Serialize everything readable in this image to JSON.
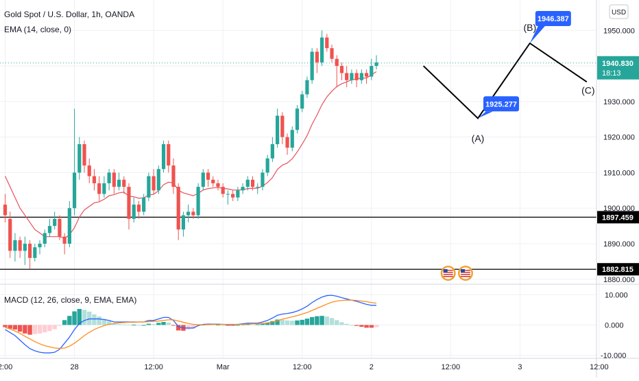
{
  "header": {
    "title": "Gold Spot / U.S. Dollar, 1h, OANDA",
    "ema_label": "EMA (14, close, 0)",
    "macd_label": "MACD (12, 26, close, 9, EMA, EMA)",
    "currency": "USD"
  },
  "colors": {
    "up": "#26a69a",
    "down": "#ef5350",
    "ema": "#e5505c",
    "macd": "#2962ff",
    "signal": "#ff8c1a",
    "callout": "#2962ff",
    "grid": "#eef0f3"
  },
  "chart_data": {
    "type": "candlestick",
    "price_axis": {
      "range": [
        1879,
        1957
      ],
      "ticks": [
        "1950.000",
        "1940.000",
        "1930.000",
        "1920.000",
        "1910.000",
        "1900.000",
        "1890.000",
        "1880.000"
      ],
      "tick_values": [
        1950,
        1940,
        1930,
        1920,
        1910,
        1900,
        1890,
        1880
      ]
    },
    "macd_axis": {
      "range": [
        -11,
        13
      ],
      "ticks": [
        "10.000",
        "0.000",
        "-10.000"
      ],
      "tick_values": [
        10,
        0,
        -10
      ]
    },
    "time_axis": {
      "labels": [
        "2:00",
        "28",
        "12:00",
        "Mar",
        "12:00",
        "2",
        "12:00",
        "3",
        "12:00"
      ],
      "label_bars": [
        0,
        14,
        30,
        44,
        60,
        74,
        90,
        104,
        120
      ]
    },
    "current_price": {
      "value": 1940.83,
      "label": "1940.830",
      "countdown": "18:13"
    },
    "horizontal_levels": [
      {
        "value": 1897.459,
        "label": "1897.459"
      },
      {
        "value": 1882.815,
        "label": "1882.815"
      }
    ],
    "projection": {
      "points": [
        {
          "bar": 84.5,
          "price": 1940.0
        },
        {
          "bar": 95.5,
          "price": 1925.277,
          "label": "(A)",
          "callout": "1925.277"
        },
        {
          "bar": 106.0,
          "price": 1946.387,
          "label": "(B)",
          "callout": "1946.387"
        },
        {
          "bar": 117.5,
          "price": 1935.5,
          "label": "(C)"
        }
      ]
    },
    "candles": [
      [
        1901,
        1898,
        1904,
        1896
      ],
      [
        1897,
        1888,
        1899,
        1886
      ],
      [
        1888,
        1891,
        1893,
        1885
      ],
      [
        1891,
        1888,
        1892,
        1886
      ],
      [
        1888,
        1890,
        1892,
        1884
      ],
      [
        1890,
        1886,
        1891,
        1883
      ],
      [
        1886,
        1889,
        1890,
        1885
      ],
      [
        1889,
        1890,
        1891,
        1887
      ],
      [
        1890,
        1893,
        1894,
        1889
      ],
      [
        1893,
        1895,
        1897,
        1892
      ],
      [
        1895,
        1897,
        1899,
        1894
      ],
      [
        1897,
        1892,
        1898,
        1891
      ],
      [
        1892,
        1890,
        1893,
        1887
      ],
      [
        1890,
        1900,
        1902,
        1889
      ],
      [
        1900,
        1910,
        1928,
        1898
      ],
      [
        1910,
        1918,
        1920,
        1908
      ],
      [
        1918,
        1912,
        1919,
        1910
      ],
      [
        1912,
        1909,
        1914,
        1907
      ],
      [
        1909,
        1907,
        1911,
        1905
      ],
      [
        1907,
        1904,
        1909,
        1902
      ],
      [
        1904,
        1907,
        1909,
        1903
      ],
      [
        1907,
        1910,
        1911,
        1905
      ],
      [
        1910,
        1906,
        1911,
        1904
      ],
      [
        1906,
        1908,
        1910,
        1905
      ],
      [
        1908,
        1906,
        1909,
        1904
      ],
      [
        1906,
        1897,
        1907,
        1894
      ],
      [
        1897,
        1901,
        1903,
        1896
      ],
      [
        1901,
        1899,
        1902,
        1897
      ],
      [
        1899,
        1903,
        1904,
        1898
      ],
      [
        1903,
        1909,
        1910,
        1902
      ],
      [
        1909,
        1905,
        1911,
        1904
      ],
      [
        1905,
        1911,
        1912,
        1904
      ],
      [
        1911,
        1918,
        1919,
        1910
      ],
      [
        1918,
        1912,
        1919,
        1910
      ],
      [
        1912,
        1906,
        1914,
        1904
      ],
      [
        1906,
        1894,
        1907,
        1891
      ],
      [
        1894,
        1898,
        1899,
        1892
      ],
      [
        1898,
        1899,
        1901,
        1896
      ],
      [
        1899,
        1898,
        1900,
        1897
      ],
      [
        1898,
        1906,
        1907,
        1897
      ],
      [
        1906,
        1910,
        1911,
        1905
      ],
      [
        1910,
        1908,
        1911,
        1906
      ],
      [
        1908,
        1907,
        1909,
        1906
      ],
      [
        1907,
        1906,
        1908,
        1905
      ],
      [
        1906,
        1904,
        1907,
        1903
      ],
      [
        1904,
        1904,
        1905,
        1901
      ],
      [
        1904,
        1903,
        1905,
        1902
      ],
      [
        1903,
        1905,
        1906,
        1902
      ],
      [
        1905,
        1906,
        1907,
        1904
      ],
      [
        1906,
        1908,
        1909,
        1905
      ],
      [
        1908,
        1906,
        1909,
        1905
      ],
      [
        1906,
        1906,
        1907,
        1904
      ],
      [
        1906,
        1910,
        1911,
        1905
      ],
      [
        1910,
        1914,
        1915,
        1909
      ],
      [
        1914,
        1918,
        1920,
        1913
      ],
      [
        1918,
        1926,
        1928,
        1917
      ],
      [
        1926,
        1920,
        1927,
        1918
      ],
      [
        1920,
        1917,
        1921,
        1915
      ],
      [
        1917,
        1922,
        1923,
        1916
      ],
      [
        1922,
        1928,
        1929,
        1921
      ],
      [
        1928,
        1932,
        1933,
        1927
      ],
      [
        1932,
        1936,
        1937,
        1931
      ],
      [
        1936,
        1944,
        1945,
        1935
      ],
      [
        1944,
        1941,
        1945,
        1938
      ],
      [
        1941,
        1948,
        1950,
        1940
      ],
      [
        1948,
        1945,
        1949,
        1944
      ],
      [
        1945,
        1942,
        1946,
        1941
      ],
      [
        1942,
        1940,
        1943,
        1934
      ],
      [
        1940,
        1938,
        1941,
        1936
      ],
      [
        1938,
        1936,
        1940,
        1934
      ],
      [
        1936,
        1938,
        1939,
        1935
      ],
      [
        1938,
        1936,
        1939,
        1934
      ],
      [
        1936,
        1938,
        1939,
        1935
      ],
      [
        1938,
        1937,
        1939,
        1935
      ],
      [
        1937,
        1940,
        1942,
        1936
      ],
      [
        1940,
        1941,
        1943,
        1939
      ]
    ],
    "ema": [
      1909,
      1906,
      1903,
      1900,
      1898,
      1896,
      1894,
      1893,
      1892,
      1892,
      1892,
      1892,
      1891.5,
      1892.5,
      1894.5,
      1897.5,
      1899.5,
      1900.5,
      1901.5,
      1901.8,
      1902.5,
      1903.5,
      1903.8,
      1904.3,
      1904.5,
      1903.4,
      1903.2,
      1902.8,
      1902.9,
      1903.7,
      1903.9,
      1904.9,
      1906.6,
      1907.3,
      1907.1,
      1905.0,
      1904.3,
      1903.9,
      1903.5,
      1904.2,
      1905.1,
      1905.5,
      1905.7,
      1905.8,
      1905.6,
      1905.4,
      1905.1,
      1905.1,
      1905.2,
      1905.5,
      1905.6,
      1905.6,
      1906.2,
      1907.2,
      1908.6,
      1910.9,
      1912.1,
      1912.7,
      1913.9,
      1915.8,
      1918.0,
      1920.4,
      1923.6,
      1926.2,
      1929.1,
      1931.3,
      1932.9,
      1934.2,
      1935.0,
      1935.5,
      1936.1,
      1936.3,
      1936.6,
      1936.6,
      1937.5,
      1938.4
    ],
    "macd": [
      -1.5,
      -2.5,
      -3.5,
      -5,
      -6.5,
      -7.8,
      -8.5,
      -9,
      -9.2,
      -9.2,
      -9,
      -8,
      -6,
      -4,
      -1.5,
      0.5,
      1.5,
      2,
      2,
      2,
      1.8,
      1.5,
      1,
      1,
      1,
      1,
      1,
      1,
      1,
      1.5,
      1.5,
      2,
      2.5,
      2.5,
      1.5,
      -0.5,
      -1,
      -1,
      -1,
      -0.2,
      0.2,
      0.3,
      0.3,
      0.3,
      0.2,
      0.1,
      0.1,
      0.2,
      0.4,
      0.6,
      0.6,
      0.6,
      1,
      1.5,
      2.3,
      3.2,
      3.6,
      3.8,
      4.1,
      4.6,
      5.3,
      6.2,
      7.4,
      8.4,
      9.2,
      9.7,
      9.8,
      9.5,
      9,
      8.6,
      8.2,
      7.8,
      7.3,
      6.8,
      6.5,
      6.5
    ],
    "signal": [
      -0.8,
      -1.3,
      -2,
      -2.8,
      -3.7,
      -4.6,
      -5.5,
      -6.2,
      -6.8,
      -7.2,
      -7.6,
      -7.7,
      -7.6,
      -7,
      -6,
      -4.8,
      -3.5,
      -2.4,
      -1.5,
      -0.8,
      -0.2,
      0.2,
      0.5,
      0.7,
      0.8,
      0.9,
      0.9,
      1,
      1,
      1.1,
      1.2,
      1.3,
      1.5,
      1.7,
      1.7,
      1.3,
      0.9,
      0.5,
      0.2,
      0.1,
      0.1,
      0.1,
      0.2,
      0.2,
      0.2,
      0.2,
      0.2,
      0.2,
      0.2,
      0.3,
      0.4,
      0.4,
      0.5,
      0.7,
      1,
      1.4,
      1.9,
      2.3,
      2.7,
      3.1,
      3.6,
      4.1,
      4.8,
      5.5,
      6.2,
      6.9,
      7.5,
      7.9,
      8.1,
      8.2,
      8.2,
      8.1,
      7.9,
      7.7,
      7.4,
      7.2
    ]
  }
}
